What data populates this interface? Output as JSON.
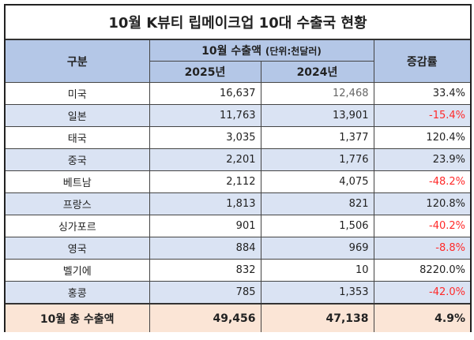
{
  "title": "10월 K뷰티 립메이크업 10대 수출국 현황",
  "header": {
    "category": "구분",
    "export_group": "10월 수출액",
    "unit": "(단위:천달러)",
    "year_2025": "2025년",
    "year_2024": "2024년",
    "change": "증감률"
  },
  "rows": [
    {
      "country": "미국",
      "v2025": "16,637",
      "v2024": "12,468",
      "change": "33.4%",
      "negative": false
    },
    {
      "country": "일본",
      "v2025": "11,763",
      "v2024": "13,901",
      "change": "-15.4%",
      "negative": true
    },
    {
      "country": "태국",
      "v2025": "3,035",
      "v2024": "1,377",
      "change": "120.4%",
      "negative": false
    },
    {
      "country": "중국",
      "v2025": "2,201",
      "v2024": "1,776",
      "change": "23.9%",
      "negative": false
    },
    {
      "country": "베트남",
      "v2025": "2,112",
      "v2024": "4,075",
      "change": "-48.2%",
      "negative": true
    },
    {
      "country": "프랑스",
      "v2025": "1,813",
      "v2024": "821",
      "change": "120.8%",
      "negative": false
    },
    {
      "country": "싱가포르",
      "v2025": "901",
      "v2024": "1,506",
      "change": "-40.2%",
      "negative": true
    },
    {
      "country": "영국",
      "v2025": "884",
      "v2024": "969",
      "change": "-8.8%",
      "negative": true
    },
    {
      "country": "벨기에",
      "v2025": "832",
      "v2024": "10",
      "change": "8220.0%",
      "negative": false
    },
    {
      "country": "홍콩",
      "v2025": "785",
      "v2024": "1,353",
      "change": "-42.0%",
      "negative": true
    }
  ],
  "total": {
    "label": "10월 총 수출액",
    "v2025": "49,456",
    "v2024": "47,138",
    "change": "4.9%"
  },
  "colors": {
    "header": "#b4c7e7",
    "alt_row": "#dae3f3",
    "total_row": "#fbe5d6",
    "negative": "#ff2a2a"
  }
}
